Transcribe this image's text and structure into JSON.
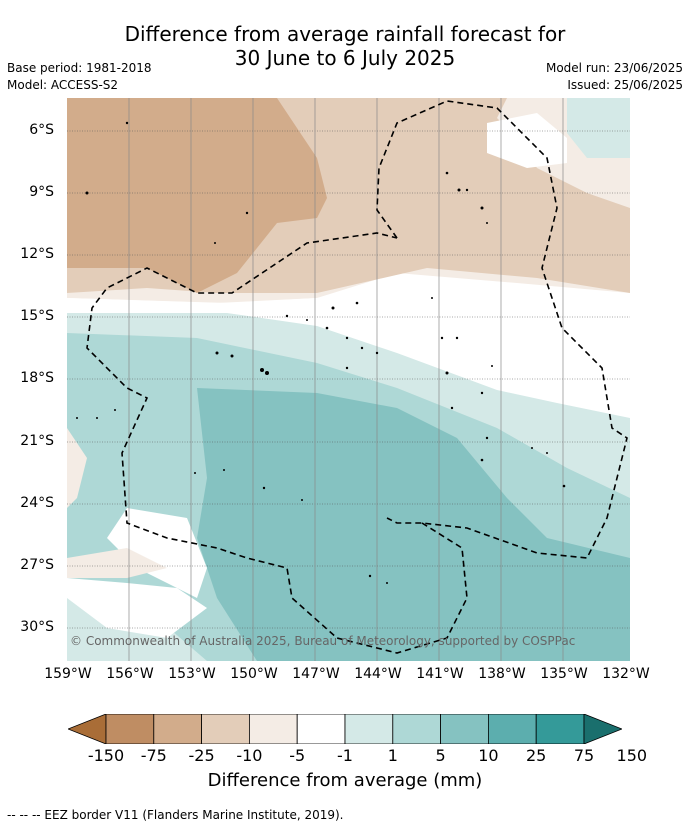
{
  "title": {
    "line1": "Difference from average rainfall forecast for",
    "line2": "30 June to 6 July 2025"
  },
  "meta": {
    "base_period": "Base period: 1981-2018",
    "model": "Model: ACCESS-S2",
    "model_run": "Model run: 23/06/2025",
    "issued": "Issued: 25/06/2025"
  },
  "lat_labels": [
    "6°S",
    "9°S",
    "12°S",
    "15°S",
    "18°S",
    "21°S",
    "24°S",
    "27°S",
    "30°S"
  ],
  "lon_labels": [
    "159°W",
    "156°W",
    "153°W",
    "150°W",
    "147°W",
    "144°W",
    "141°W",
    "138°W",
    "135°W",
    "132°W"
  ],
  "copyright": "© Commonwealth of Australia 2025, Bureau of Meteorology, supported by COSPPac",
  "colorbar": {
    "title": "Difference from average (mm)",
    "tick_labels": [
      "-150",
      "-75",
      "-25",
      "-10",
      "-5",
      "-1",
      "1",
      "5",
      "10",
      "25",
      "75",
      "150"
    ],
    "colors": [
      "#a96d37",
      "#bf8d63",
      "#d2ac8b",
      "#e3cdb9",
      "#f4ece5",
      "#ffffff",
      "#d4e9e7",
      "#aed8d6",
      "#85c2c1",
      "#5caeae",
      "#349a99",
      "#1a6f6d"
    ]
  },
  "footnote": "--  --  -- EEZ border V11 (Flanders Marine Institute, 2019)."
}
